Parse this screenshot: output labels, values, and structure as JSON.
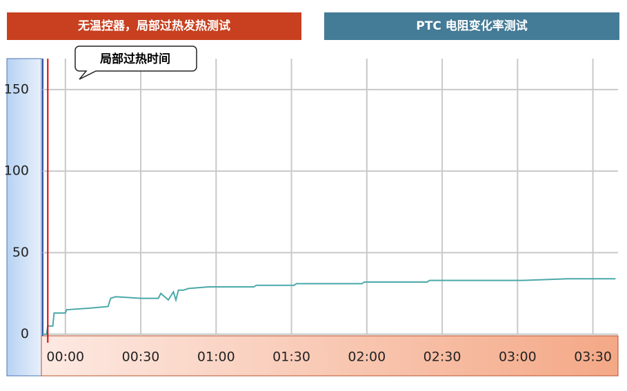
{
  "banners": {
    "left": "无温控器，局部过热发热测试",
    "right": "PTC 电阻变化率测试"
  },
  "chart_data": {
    "type": "line",
    "annotation": {
      "text": "局部过热时间",
      "x": -7,
      "color": "#e00000"
    },
    "x": [
      -9,
      -7.5,
      -7,
      -5,
      -4.5,
      0,
      0.5,
      10,
      17,
      18,
      20,
      30,
      37,
      38,
      41,
      43,
      44,
      45,
      47,
      49,
      57,
      75,
      76,
      91,
      92,
      118,
      119,
      144,
      145,
      182,
      200,
      219
    ],
    "series": [
      {
        "color": "#4aa8a8",
        "values": [
          0,
          0,
          5,
          5,
          13,
          13,
          15,
          16,
          17,
          22,
          23,
          22,
          22,
          25,
          21,
          26,
          21,
          27,
          27,
          28,
          29,
          29,
          30,
          30,
          31,
          31,
          32,
          32,
          33,
          33,
          34,
          34
        ]
      }
    ],
    "xlim": [
      -9,
      220
    ],
    "xticks": [
      {
        "value": 0,
        "label": "00:00"
      },
      {
        "value": 30,
        "label": "00:30"
      },
      {
        "value": 60,
        "label": "01:00"
      },
      {
        "value": 90,
        "label": "01:30"
      },
      {
        "value": 120,
        "label": "02:00"
      },
      {
        "value": 150,
        "label": "02:30"
      },
      {
        "value": 180,
        "label": "03:00"
      },
      {
        "value": 210,
        "label": "03:30"
      }
    ],
    "ylim": [
      -1,
      169
    ],
    "yticks": [
      0,
      50,
      100,
      150
    ],
    "grid": true
  }
}
